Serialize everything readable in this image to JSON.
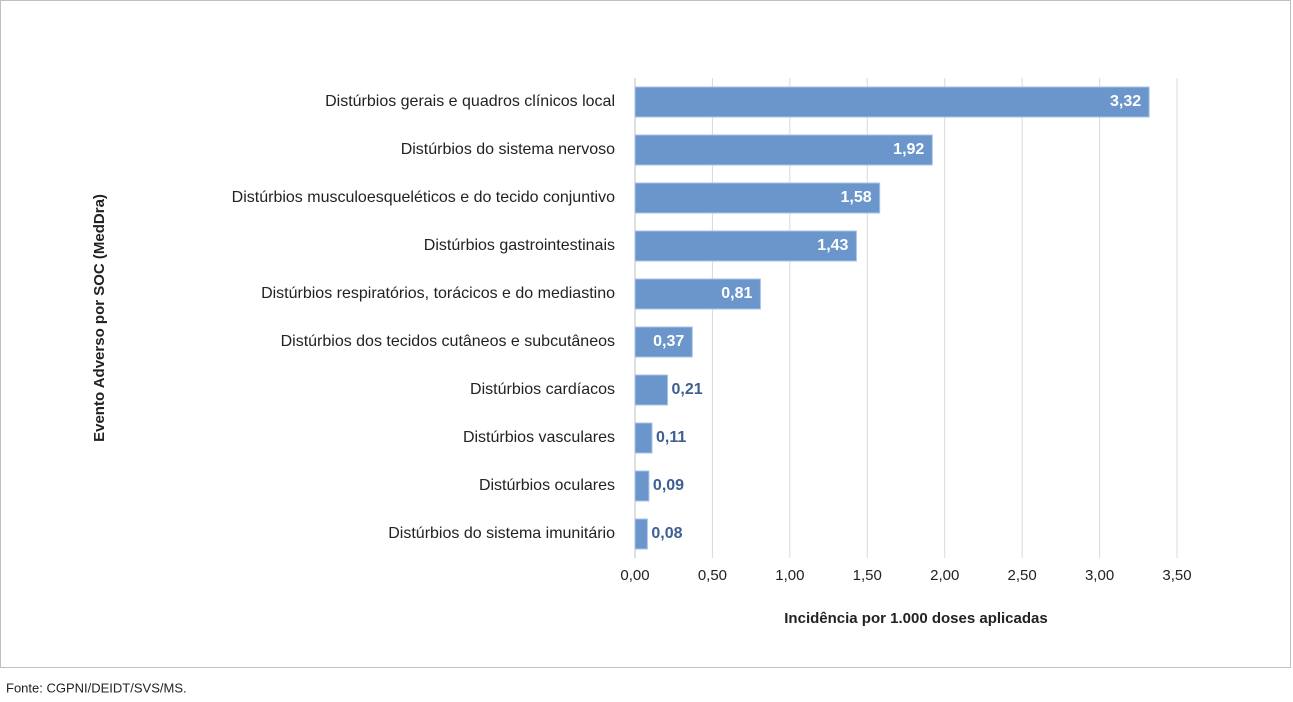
{
  "chart_data": {
    "type": "barh",
    "categories": [
      "Distúrbios gerais e quadros clínicos local",
      "Distúrbios do sistema nervoso",
      "Distúrbios musculoesqueléticos e do tecido conjuntivo",
      "Distúrbios gastrointestinais",
      "Distúrbios respiratórios, torácicos e do mediastino",
      "Distúrbios dos tecidos cutâneos e subcutâneos",
      "Distúrbios cardíacos",
      "Distúrbios vasculares",
      "Distúrbios oculares",
      "Distúrbios do sistema imunitário"
    ],
    "values": [
      3.32,
      1.92,
      1.58,
      1.43,
      0.81,
      0.37,
      0.21,
      0.11,
      0.09,
      0.08
    ],
    "value_labels": [
      "3,32",
      "1,92",
      "1,58",
      "1,43",
      "0,81",
      "0,37",
      "0,21",
      "0,11",
      "0,09",
      "0,08"
    ],
    "color": "#6b96cc",
    "xlim": [
      0,
      3.5
    ],
    "xticks": [
      {
        "value": 0,
        "label": "0,00"
      },
      {
        "value": 0.5,
        "label": "0,50"
      },
      {
        "value": 1,
        "label": "1,00"
      },
      {
        "value": 1.5,
        "label": "1,50"
      },
      {
        "value": 2,
        "label": "2,00"
      },
      {
        "value": 2.5,
        "label": "2,50"
      },
      {
        "value": 3,
        "label": "3,00"
      },
      {
        "value": 3.5,
        "label": "3,50"
      }
    ],
    "grid": true,
    "xlabel": "Incidência  por 1.000 doses aplicadas",
    "ylabel": "Evento Adverso por SOC (MedDra)",
    "source": "Fonte: CGPNI/DEIDT/SVS/MS."
  }
}
